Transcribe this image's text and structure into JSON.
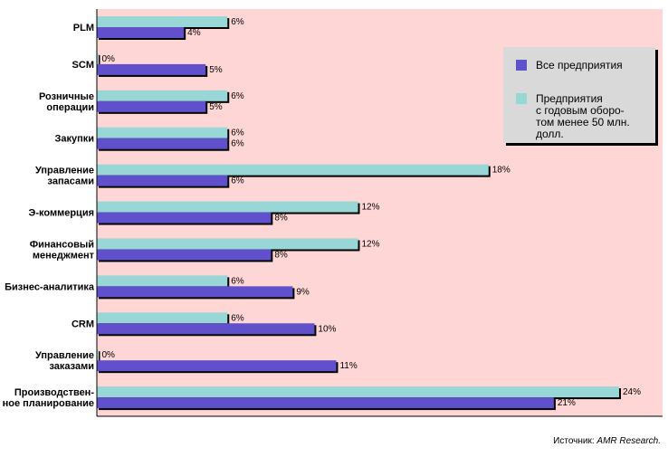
{
  "chart_data": {
    "type": "bar",
    "orientation": "horizontal",
    "categories": [
      [
        "PLM"
      ],
      [
        "SCM"
      ],
      [
        "Розничные",
        "операции"
      ],
      [
        "Закупки"
      ],
      [
        "Управление",
        "запасами"
      ],
      [
        "Э-коммерция"
      ],
      [
        "Финансовый",
        "менеджмент"
      ],
      [
        "Бизнес-аналитика"
      ],
      [
        "CRM"
      ],
      [
        "Управление",
        "заказами"
      ],
      [
        "Производствен-",
        "ное планирование"
      ]
    ],
    "series": [
      {
        "name": [
          "Предприятия",
          "с годовым оборо-",
          "том менее 50 млн.",
          "долл."
        ],
        "color": "#99d6d6",
        "values": [
          6,
          0,
          6,
          6,
          18,
          12,
          12,
          6,
          6,
          0,
          24
        ],
        "labels": [
          "6%",
          "0%",
          "6%",
          "6%",
          "18%",
          "12%",
          "12%",
          "6%",
          "6%",
          "0%",
          "24%"
        ]
      },
      {
        "name": [
          "Все предприятия"
        ],
        "color": "#6050cc",
        "values": [
          4,
          5,
          5,
          6,
          6,
          8,
          8,
          9,
          10,
          11,
          21
        ],
        "labels": [
          "4%",
          "5%",
          "5%",
          "6%",
          "6%",
          "8%",
          "8%",
          "9%",
          "10%",
          "11%",
          "21%"
        ]
      }
    ],
    "legend_order": [
      1,
      0
    ],
    "xlim": [
      0,
      24
    ],
    "grid": false,
    "legend_position": "top-right",
    "plot_background": "#ffd6d6"
  },
  "source": {
    "prefix": "Источник: ",
    "name": "AMR Research."
  }
}
